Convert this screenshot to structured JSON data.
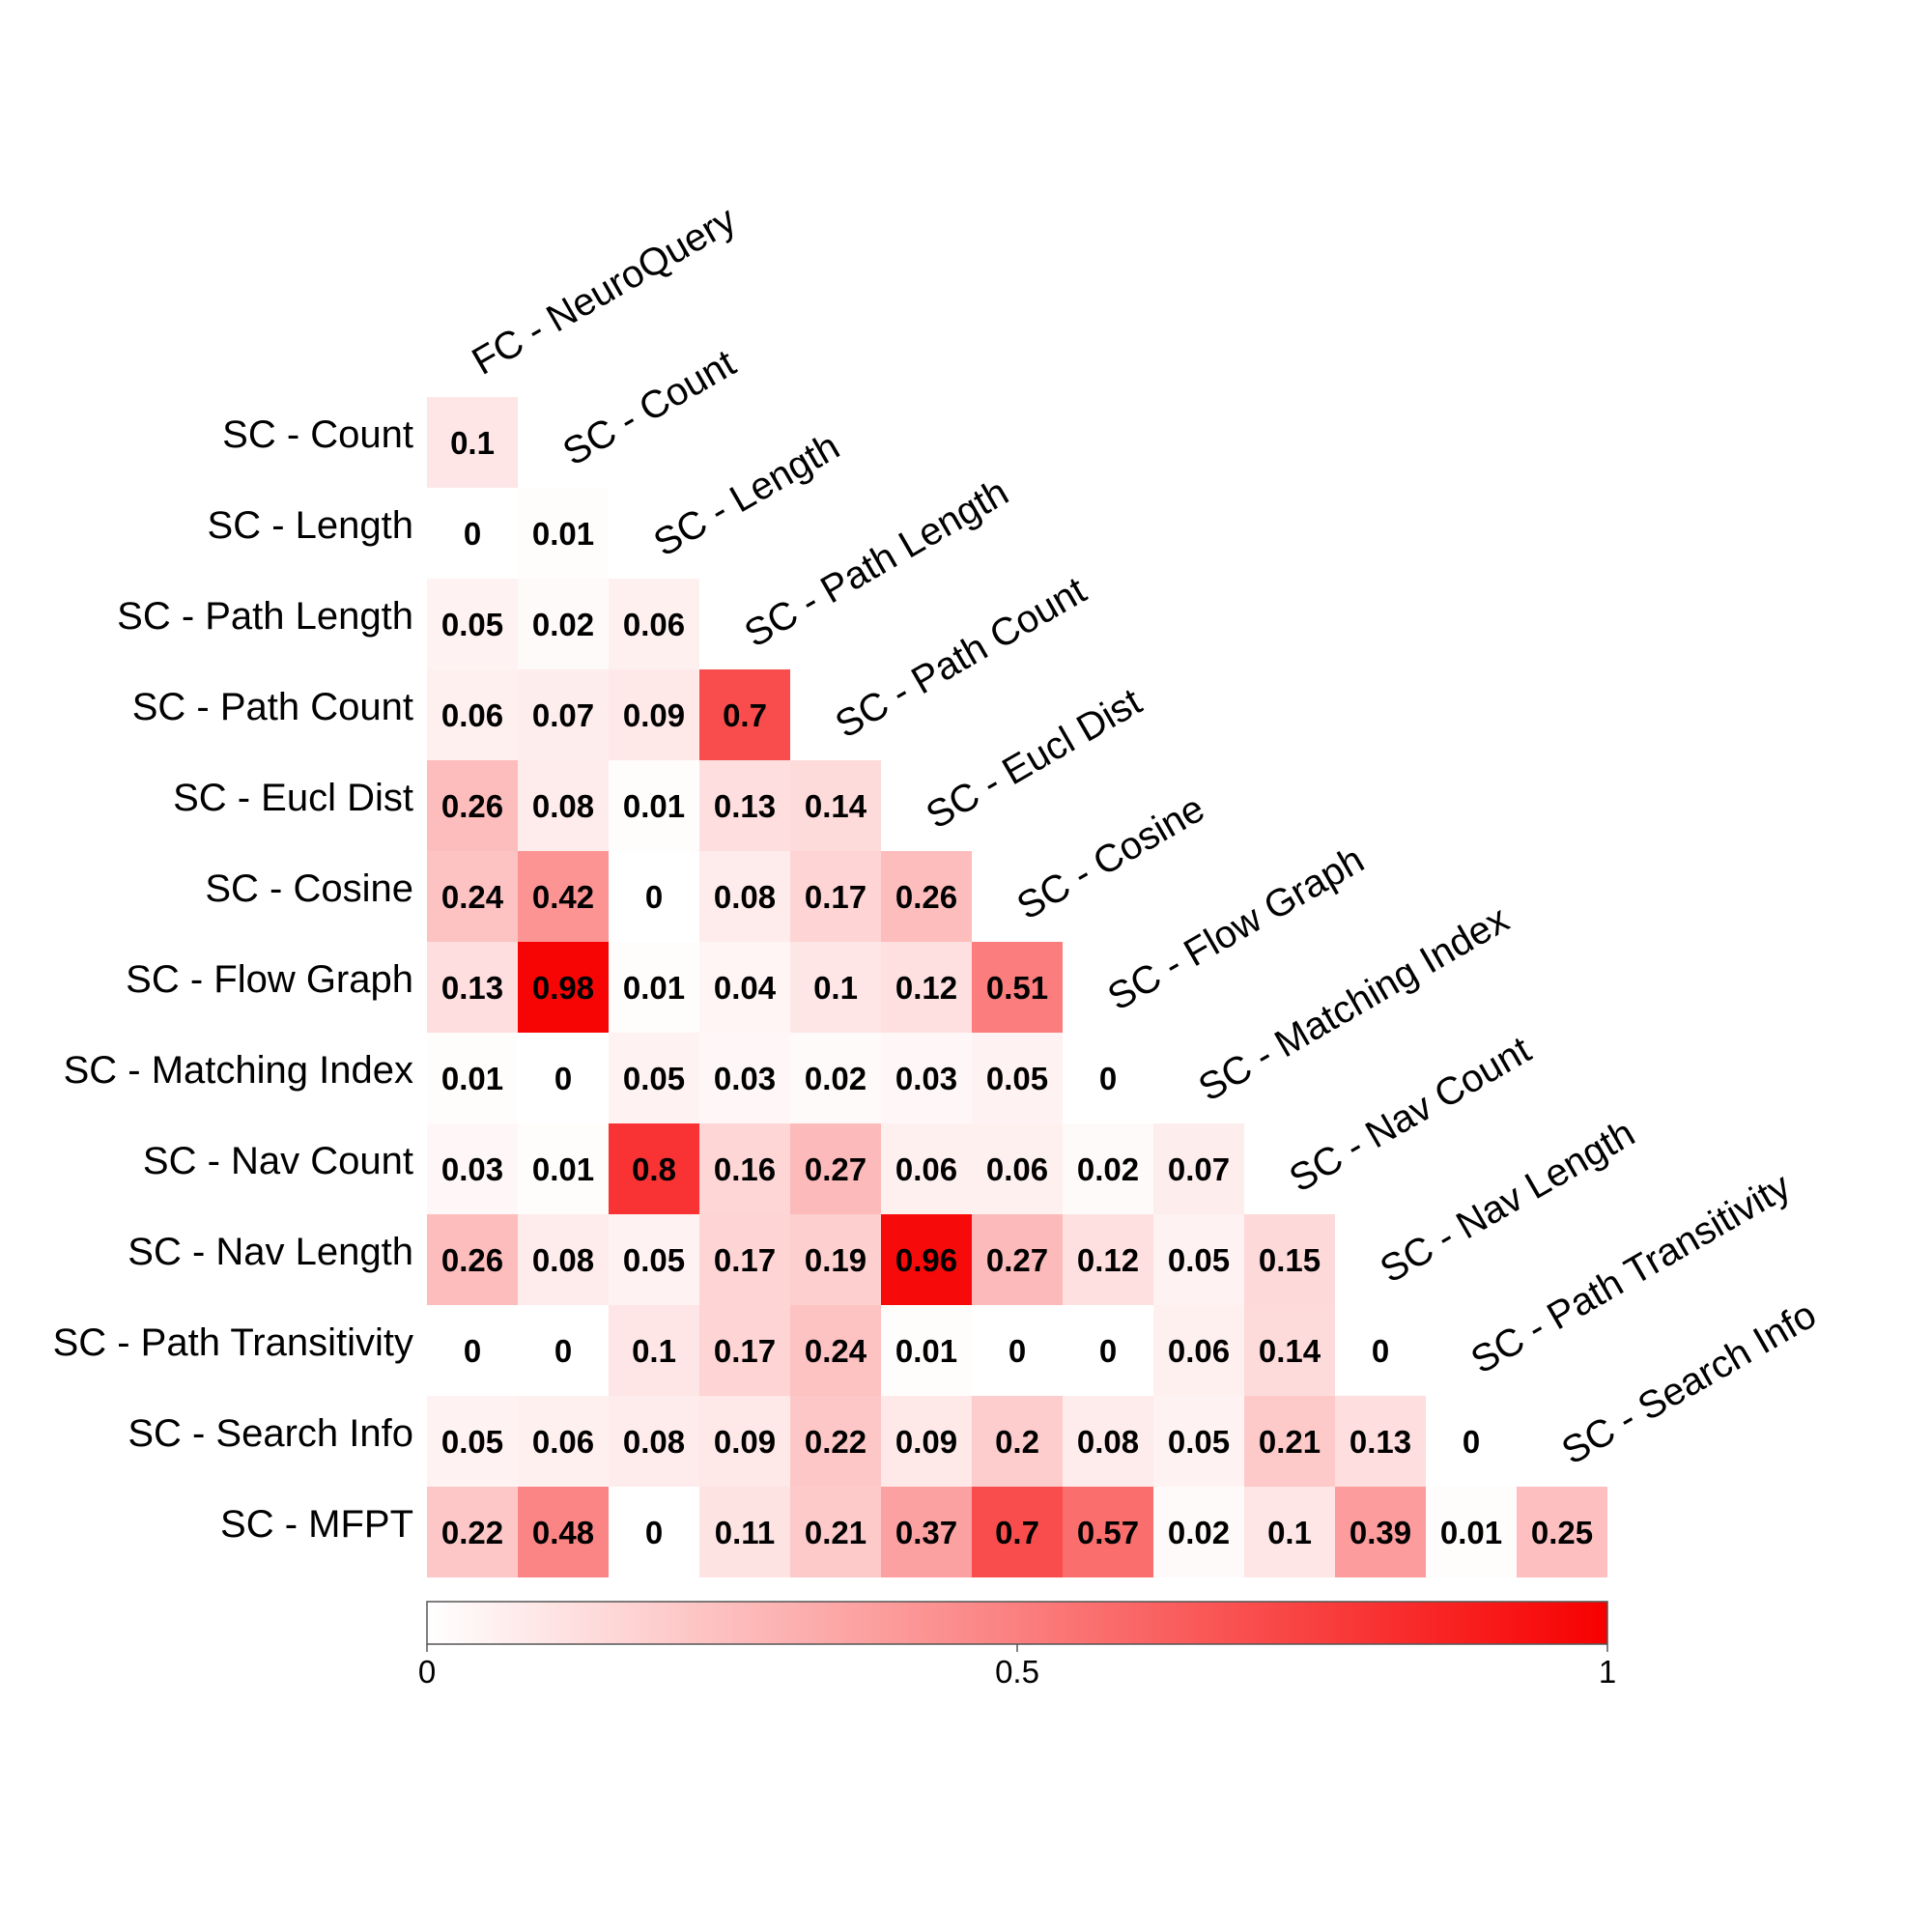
{
  "chart_data": {
    "type": "heatmap",
    "title": "",
    "row_labels": [
      "SC - Count",
      "SC - Length",
      "SC - Path Length",
      "SC - Path Count",
      "SC - Eucl Dist",
      "SC - Cosine",
      "SC - Flow Graph",
      "SC - Matching Index",
      "SC - Nav Count",
      "SC - Nav Length",
      "SC - Path Transitivity",
      "SC - Search Info",
      "SC - MFPT"
    ],
    "col_labels": [
      "FC - NeuroQuery",
      "SC - Count",
      "SC - Length",
      "SC - Path Length",
      "SC - Path Count",
      "SC - Eucl Dist",
      "SC - Cosine",
      "SC - Flow Graph",
      "SC - Matching Index",
      "SC - Nav Count",
      "SC - Nav Length",
      "SC - Path Transitivity",
      "SC - Search Info"
    ],
    "values": [
      [
        "0.1"
      ],
      [
        "0",
        "0.01"
      ],
      [
        "0.05",
        "0.02",
        "0.06"
      ],
      [
        "0.06",
        "0.07",
        "0.09",
        "0.7"
      ],
      [
        "0.26",
        "0.08",
        "0.01",
        "0.13",
        "0.14"
      ],
      [
        "0.24",
        "0.42",
        "0",
        "0.08",
        "0.17",
        "0.26"
      ],
      [
        "0.13",
        "0.98",
        "0.01",
        "0.04",
        "0.1",
        "0.12",
        "0.51"
      ],
      [
        "0.01",
        "0",
        "0.05",
        "0.03",
        "0.02",
        "0.03",
        "0.05",
        "0"
      ],
      [
        "0.03",
        "0.01",
        "0.8",
        "0.16",
        "0.27",
        "0.06",
        "0.06",
        "0.02",
        "0.07"
      ],
      [
        "0.26",
        "0.08",
        "0.05",
        "0.17",
        "0.19",
        "0.96",
        "0.27",
        "0.12",
        "0.05",
        "0.15"
      ],
      [
        "0",
        "0",
        "0.1",
        "0.17",
        "0.24",
        "0.01",
        "0",
        "0",
        "0.06",
        "0.14",
        "0"
      ],
      [
        "0.05",
        "0.06",
        "0.08",
        "0.09",
        "0.22",
        "0.09",
        "0.2",
        "0.08",
        "0.05",
        "0.21",
        "0.13",
        "0"
      ],
      [
        "0.22",
        "0.48",
        "0",
        "0.11",
        "0.21",
        "0.37",
        "0.7",
        "0.57",
        "0.02",
        "0.1",
        "0.39",
        "0.01",
        "0.25"
      ]
    ],
    "colorbar": {
      "range": [
        0,
        1
      ],
      "ticks": [
        "0",
        "0.5",
        "1"
      ],
      "color_low": "#ffffff",
      "color_high": "#f70000"
    }
  }
}
